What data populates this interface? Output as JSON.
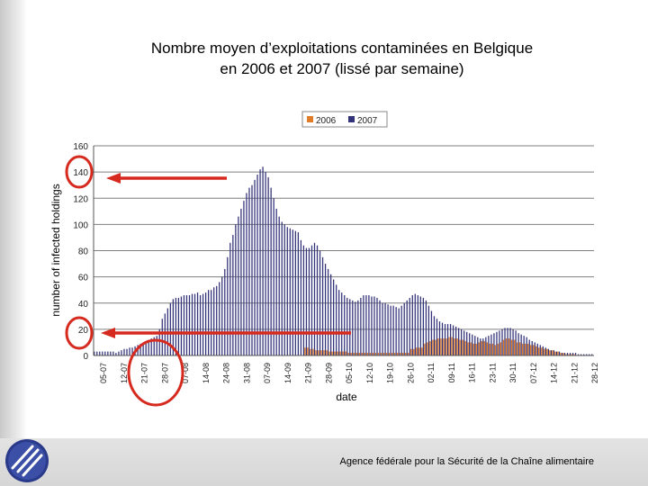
{
  "slide": {
    "title_line1": "Nombre moyen d’exploitations contaminées en Belgique",
    "title_line2": "en 2006 et 2007 (lissé par semaine)",
    "footer": "Agence fédérale pour la Sécurité de la Chaîne alimentaire",
    "logo_icon": "afsca-logo-icon"
  },
  "colors": {
    "series_2006": "#e07b28",
    "series_2007": "#33337a",
    "annotation": "#d62a1f",
    "grid": "#7f7f7f"
  },
  "annotations": [
    "red-arrow-at-140",
    "red-arrow-at-20",
    "red-circle-on-date-axis",
    "red-circle-on-y-zero-to-twenty"
  ],
  "chart_data": {
    "type": "bar",
    "title": "",
    "xlabel": "date",
    "ylabel": "number of infected holdings",
    "ylim": [
      0,
      160
    ],
    "yticks": [
      0,
      20,
      40,
      60,
      80,
      100,
      120,
      140,
      160
    ],
    "grid": true,
    "legend": "top-center",
    "x_tick_labels": [
      "05-07",
      "12-07",
      "21-07",
      "28-07",
      "07-08",
      "14-08",
      "24-08",
      "31-08",
      "07-09",
      "14-09",
      "21-09",
      "28-09",
      "05-10",
      "12-10",
      "19-10",
      "26-10",
      "02-11",
      "09-11",
      "16-11",
      "23-11",
      "30-11",
      "07-12",
      "14-12",
      "21-12",
      "28-12"
    ],
    "n_days": 184,
    "series": [
      {
        "name": "2006",
        "values": [
          0,
          0,
          0,
          0,
          0,
          0,
          0,
          0,
          0,
          0,
          0,
          0,
          0,
          0,
          0,
          0,
          0,
          0,
          0,
          0,
          0,
          0,
          0,
          0,
          0,
          0,
          0,
          0,
          0,
          0,
          0,
          0,
          0,
          0,
          0,
          0,
          0,
          0,
          0,
          0,
          0,
          0,
          0,
          0,
          0,
          0,
          0,
          0,
          0,
          0,
          0,
          0,
          0,
          0,
          0,
          0,
          0,
          0,
          0,
          0,
          0,
          0,
          0,
          0,
          0,
          0,
          0,
          0,
          0,
          0,
          0,
          0,
          0,
          0,
          0,
          0,
          0,
          6,
          6,
          5,
          5,
          4,
          4,
          4,
          4,
          4,
          3,
          3,
          3,
          3,
          3,
          3,
          3,
          2,
          2,
          2,
          2,
          2,
          2,
          2,
          2,
          2,
          2,
          2,
          2,
          2,
          2,
          2,
          2,
          2,
          2,
          2,
          2,
          2,
          2,
          2,
          5,
          5,
          6,
          6,
          6,
          9,
          10,
          11,
          12,
          12,
          13,
          13,
          13,
          13,
          14,
          14,
          13,
          13,
          12,
          12,
          11,
          10,
          10,
          9,
          9,
          10,
          11,
          11,
          10,
          9,
          9,
          8,
          9,
          10,
          12,
          13,
          13,
          12,
          12,
          10,
          10,
          9,
          9,
          9,
          8,
          8,
          7,
          6,
          6,
          5,
          5,
          4,
          4,
          3,
          3,
          2,
          2,
          1,
          1,
          1,
          1,
          0,
          0,
          0,
          0,
          0,
          0,
          0,
          0,
          0,
          0
        ]
      },
      {
        "name": "2007",
        "values": [
          3,
          3,
          3,
          3,
          3,
          3,
          3,
          3,
          2,
          3,
          4,
          5,
          5,
          6,
          6,
          7,
          8,
          9,
          10,
          11,
          12,
          13,
          14,
          15,
          20,
          28,
          32,
          36,
          40,
          43,
          44,
          44,
          45,
          46,
          46,
          46,
          47,
          47,
          48,
          46,
          47,
          48,
          50,
          50,
          52,
          53,
          56,
          60,
          66,
          75,
          86,
          92,
          100,
          106,
          112,
          118,
          124,
          128,
          130,
          134,
          138,
          142,
          144,
          140,
          136,
          128,
          120,
          112,
          106,
          102,
          100,
          98,
          97,
          96,
          95,
          94,
          88,
          84,
          82,
          82,
          84,
          86,
          84,
          80,
          75,
          70,
          66,
          62,
          58,
          54,
          50,
          48,
          46,
          44,
          43,
          42,
          41,
          42,
          44,
          46,
          46,
          46,
          45,
          45,
          44,
          42,
          40,
          40,
          39,
          38,
          38,
          37,
          36,
          38,
          40,
          42,
          44,
          46,
          47,
          46,
          45,
          44,
          42,
          38,
          34,
          30,
          28,
          26,
          25,
          24,
          24,
          24,
          23,
          22,
          21,
          20,
          19,
          18,
          17,
          16,
          15,
          14,
          13,
          13,
          14,
          15,
          16,
          17,
          18,
          19,
          20,
          21,
          21,
          21,
          20,
          19,
          17,
          16,
          15,
          14,
          12,
          11,
          10,
          9,
          8,
          7,
          6,
          5,
          4,
          4,
          3,
          3,
          2,
          2,
          2,
          2,
          2,
          2,
          1,
          1,
          1,
          1,
          1,
          1
        ]
      }
    ]
  }
}
